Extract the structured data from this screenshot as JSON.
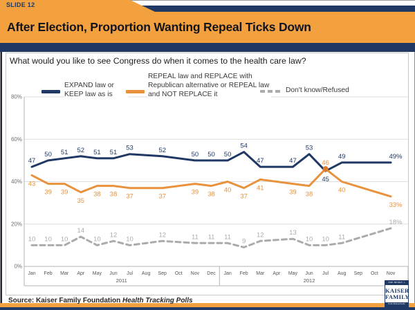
{
  "slide": {
    "slide_label": "SLIDE 12",
    "title": "After Election, Proportion Wanting Repeal Ticks Down",
    "question": "What would you like to see Congress do when it comes to the health care law?",
    "source_prefix": "Source: Kaiser Family Foundation ",
    "source_italic": "Health Tracking Polls"
  },
  "logo": {
    "top_text": "THE HENRY J.",
    "name_line1": "KAISER",
    "name_line2": "FAMILY",
    "bottom_text": "FOUNDATION"
  },
  "colors": {
    "orange": "#F2A13E",
    "navy": "#1F3864",
    "line_orange": "#E8923E",
    "line_navy": "#1F3864",
    "line_gray": "#ABABAB"
  },
  "chart_data": {
    "type": "line",
    "title": "",
    "xlabel": "",
    "ylabel": "",
    "ylim": [
      0,
      80
    ],
    "grid": "horizontal",
    "legend_position": "top",
    "y_ticks": [
      {
        "label": "80%",
        "value": 80
      },
      {
        "label": "60%",
        "value": 60
      },
      {
        "label": "40%",
        "value": 40
      },
      {
        "label": "20%",
        "value": 20
      },
      {
        "label": "0%",
        "value": 0
      }
    ],
    "month_labels": [
      "Jan",
      "Feb",
      "Mar",
      "Apr",
      "May",
      "Jun",
      "Jul",
      "Aug",
      "Sep",
      "Oct",
      "Nov",
      "Dec",
      "Jan",
      "Feb",
      "Mar",
      "Apr",
      "May",
      "Jun",
      "Jul",
      "Aug",
      "Sep",
      "Oct",
      "Nov"
    ],
    "year_groups": [
      {
        "label": "2011",
        "start": 0,
        "end": 11
      },
      {
        "label": "2012",
        "start": 12,
        "end": 22
      }
    ],
    "point_month_indices": [
      0,
      1,
      2,
      3,
      4,
      5,
      6,
      8,
      10,
      11,
      12,
      13,
      14,
      16,
      17,
      18,
      19,
      22
    ],
    "series": [
      {
        "name": "EXPAND law or KEEP law as is",
        "color": "#1F3864",
        "style": "solid",
        "label_pos": "above",
        "label_overrides": {
          "15": "below"
        },
        "values": [
          47,
          50,
          51,
          52,
          51,
          51,
          53,
          52,
          50,
          50,
          50,
          54,
          47,
          47,
          53,
          45,
          49,
          49
        ],
        "labels": [
          "47",
          "50",
          "51",
          "52",
          "51",
          "51",
          "53",
          "52",
          "50",
          "50",
          "50",
          "54",
          "47",
          "47",
          "53",
          "45",
          "49",
          "49%"
        ]
      },
      {
        "name": "REPEAL law and REPLACE with Republican alternative or REPEAL law and NOT REPLACE it",
        "color": "#E8923E",
        "style": "solid",
        "label_pos": "below",
        "label_overrides": {
          "15": "above"
        },
        "marker_index": 15,
        "marker_color": "#E07C2A",
        "values": [
          43,
          39,
          39,
          35,
          38,
          38,
          37,
          37,
          39,
          38,
          40,
          37,
          41,
          39,
          38,
          46,
          40,
          33
        ],
        "labels": [
          "43",
          "39",
          "39",
          "35",
          "38",
          "38",
          "37",
          "37",
          "39",
          "38",
          "40",
          "37",
          "41",
          "39",
          "38",
          "46",
          "40",
          "33%"
        ]
      },
      {
        "name": "Don't know/Refused",
        "color": "#ABABAB",
        "style": "dashed",
        "dash": "7,5",
        "label_pos": "above",
        "values": [
          10,
          10,
          10,
          14,
          10,
          12,
          10,
          12,
          11,
          11,
          11,
          9,
          12,
          13,
          10,
          10,
          11,
          18
        ],
        "labels": [
          "10",
          "10",
          "10",
          "14",
          "10",
          "12",
          "10",
          "12",
          "11",
          "11",
          "11",
          "9",
          "12",
          "13",
          "10",
          "10",
          "11",
          "18%"
        ]
      }
    ]
  }
}
